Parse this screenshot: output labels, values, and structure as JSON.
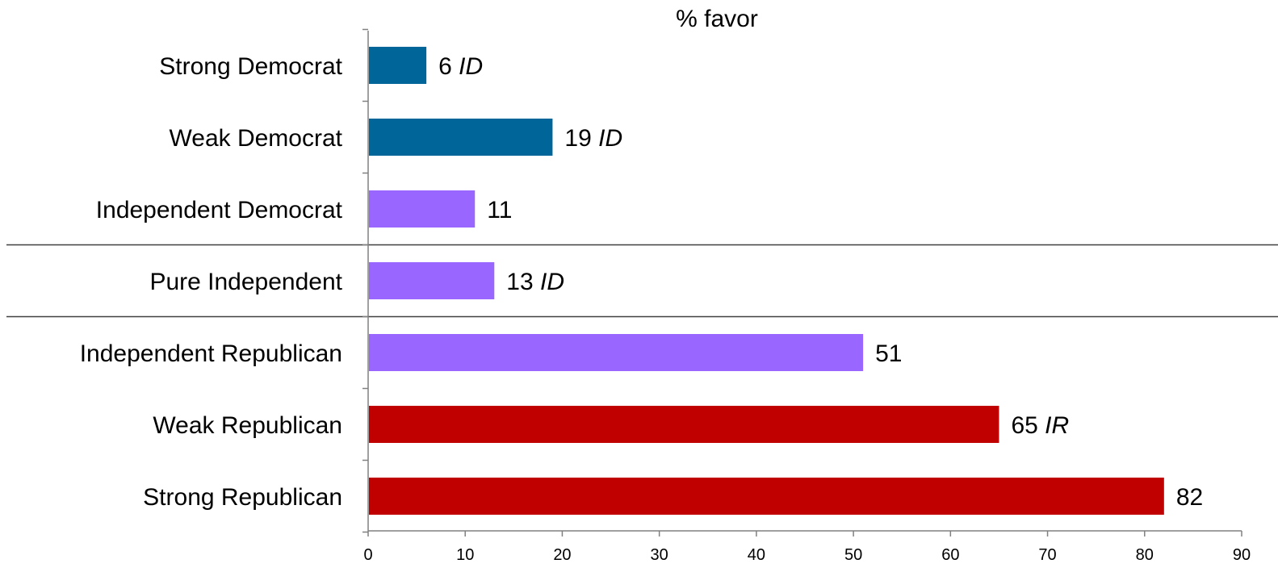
{
  "chart_data": {
    "type": "bar",
    "orientation": "horizontal",
    "title": "% favor",
    "xlabel": "",
    "ylabel": "",
    "xlim": [
      0,
      90
    ],
    "x_ticks": [
      "0",
      "10",
      "20",
      "30",
      "40",
      "50",
      "60",
      "70",
      "80",
      "90"
    ],
    "grid": false,
    "legend": "none",
    "categories": [
      "Strong Democrat",
      "Weak Democrat",
      "Independent Democrat",
      "Pure Independent",
      "Independent Republican",
      "Weak Republican",
      "Strong Republican"
    ],
    "values": [
      6,
      19,
      11,
      13,
      51,
      65,
      82
    ],
    "value_labels": [
      "6",
      "19",
      "11",
      "13",
      "51",
      "65",
      "82"
    ],
    "label_suffixes": [
      "ID",
      "ID",
      "",
      "ID",
      "",
      "IR",
      ""
    ],
    "colors": [
      "#006699",
      "#006699",
      "#9966FF",
      "#9966FF",
      "#9966FF",
      "#C00000",
      "#C00000"
    ],
    "group_dividers_after": [
      "Independent Democrat",
      "Pure Independent"
    ]
  }
}
